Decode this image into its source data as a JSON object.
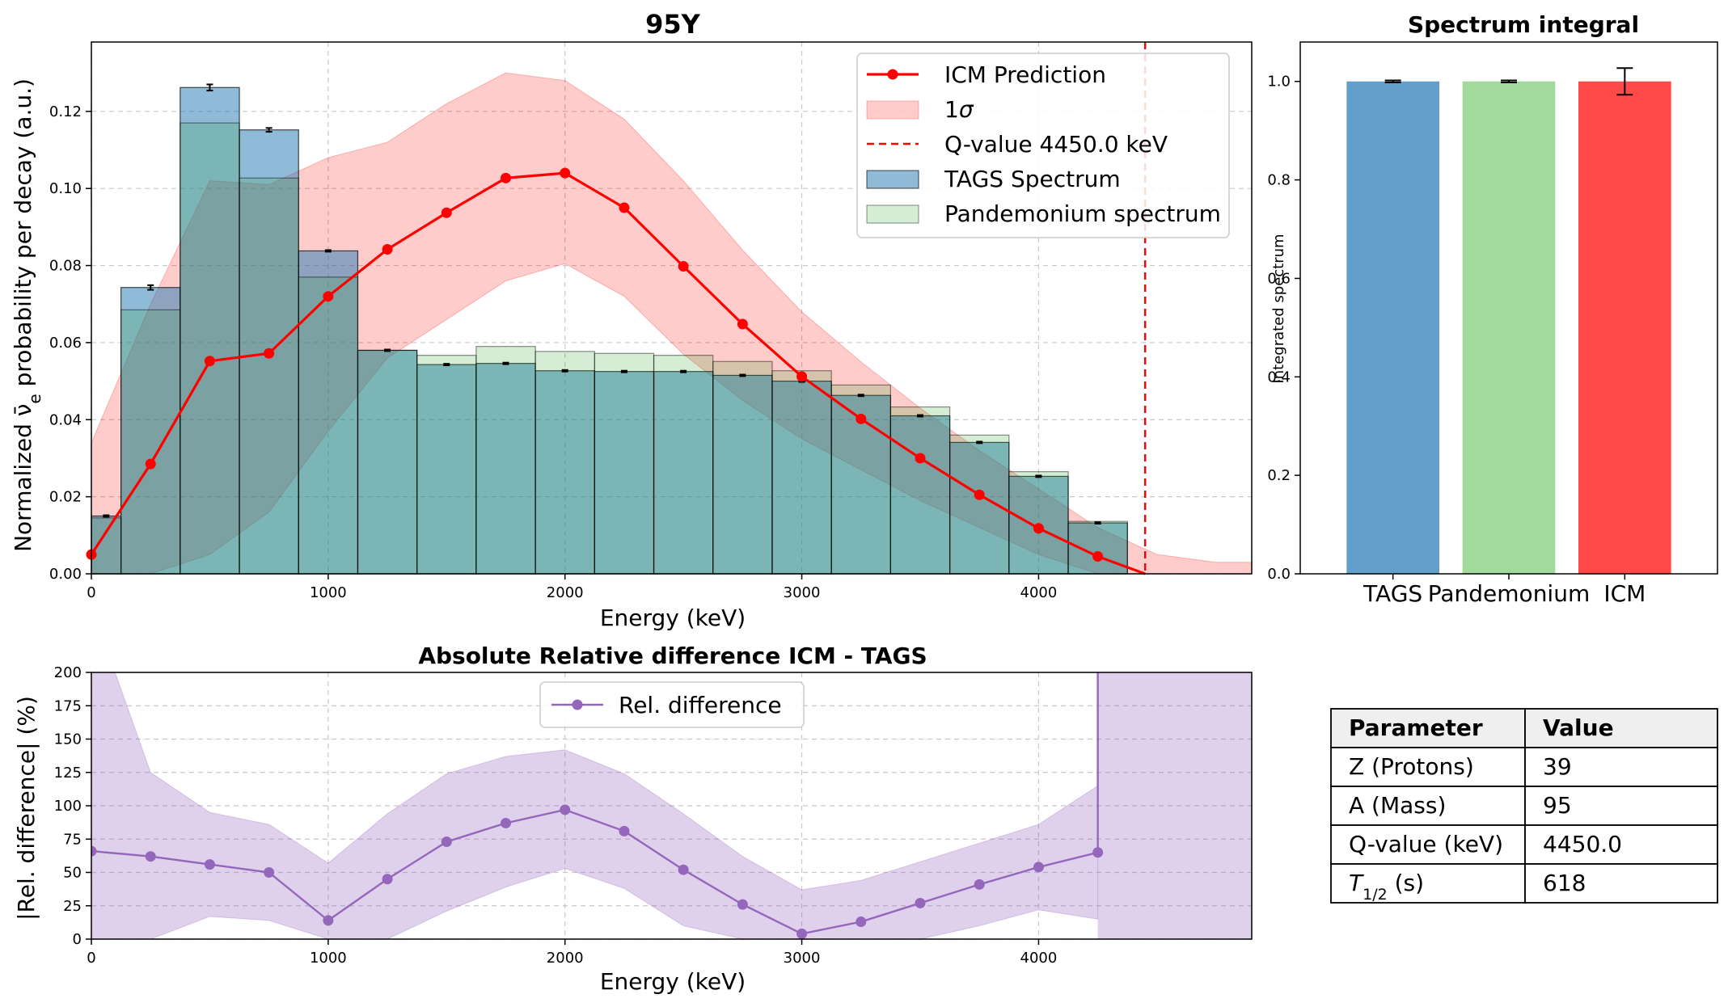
{
  "figure": {
    "main_title": "95Y",
    "panel_b_title": "Spectrum integral",
    "panel_c_title": "Absolute Relative difference ICM - TAGS"
  },
  "chart_data": [
    {
      "type": "bar",
      "title": "95Y",
      "xlabel": "Energy (keV)",
      "ylabel": "Normalized ν̄e probability per decay (a.u.)",
      "xlim": [
        0,
        4900
      ],
      "ylim": [
        0,
        0.138
      ],
      "x_ticks": [
        0,
        1000,
        2000,
        3000,
        4000
      ],
      "y_ticks": [
        0.0,
        0.02,
        0.04,
        0.06,
        0.08,
        0.1,
        0.12
      ],
      "grid": true,
      "legend_position": "top-right",
      "bin_edges": [
        0,
        125,
        375,
        625,
        875,
        1125,
        1375,
        1625,
        1875,
        2125,
        2375,
        2625,
        2875,
        3125,
        3375,
        3625,
        3875,
        4125,
        4375
      ],
      "series": [
        {
          "name": "TAGS Spectrum",
          "kind": "histogram",
          "color": "#1f77b4",
          "values": [
            0.015,
            0.0743,
            0.1262,
            0.1152,
            0.0838,
            0.058,
            0.0543,
            0.0546,
            0.0527,
            0.0525,
            0.0525,
            0.0515,
            0.05,
            0.0463,
            0.041,
            0.0341,
            0.0253,
            0.0132
          ],
          "errors": [
            0.0002,
            0.0006,
            0.0008,
            0.0005,
            0.0002,
            0.0002,
            0.0002,
            0.0002,
            0.0002,
            0.0002,
            0.0002,
            0.0002,
            0.0002,
            0.0002,
            0.0002,
            0.0002,
            0.0002,
            0.0002
          ]
        },
        {
          "name": "Pandemonium spectrum",
          "kind": "histogram",
          "color": "#2ca02c",
          "values": [
            0.0145,
            0.0685,
            0.117,
            0.1027,
            0.077,
            0.058,
            0.0567,
            0.059,
            0.0577,
            0.0572,
            0.0567,
            0.0551,
            0.0527,
            0.049,
            0.0433,
            0.036,
            0.0265,
            0.0136
          ]
        },
        {
          "name": "ICM Prediction",
          "kind": "line",
          "color": "#ff0000",
          "x": [
            0,
            250,
            500,
            750,
            1000,
            1250,
            1500,
            1750,
            2000,
            2250,
            2500,
            2750,
            3000,
            3250,
            3500,
            3750,
            4000,
            4250,
            4450
          ],
          "y": [
            0.005,
            0.0285,
            0.0552,
            0.0572,
            0.072,
            0.0842,
            0.0937,
            0.1027,
            0.104,
            0.095,
            0.0798,
            0.0648,
            0.0512,
            0.0402,
            0.03,
            0.0205,
            0.0118,
            0.0045,
            0.0
          ],
          "band_name": "1σ",
          "band_x": [
            0,
            250,
            500,
            750,
            1000,
            1250,
            1500,
            1750,
            2000,
            2250,
            2500,
            2750,
            3000,
            3250,
            3500,
            3750,
            4000,
            4250,
            4500,
            4750,
            4900
          ],
          "band_upper": [
            0.034,
            0.07,
            0.102,
            0.101,
            0.108,
            0.112,
            0.122,
            0.13,
            0.128,
            0.118,
            0.102,
            0.084,
            0.068,
            0.055,
            0.043,
            0.032,
            0.022,
            0.012,
            0.005,
            0.003,
            0.003
          ],
          "band_lower": [
            0.0,
            0.0,
            0.005,
            0.016,
            0.037,
            0.056,
            0.066,
            0.076,
            0.0805,
            0.072,
            0.057,
            0.045,
            0.035,
            0.027,
            0.019,
            0.012,
            0.005,
            0.0,
            0.0,
            0.0,
            0.0
          ]
        }
      ],
      "vline": {
        "x": 4450,
        "name": "Q-value 4450.0 keV",
        "color": "#ff0000"
      }
    },
    {
      "type": "bar",
      "title": "Spectrum integral",
      "xlabel": "",
      "ylabel": "Integrated spectrum",
      "ylim": [
        0,
        1.08
      ],
      "y_ticks": [
        0.0,
        0.2,
        0.4,
        0.6,
        0.8,
        1.0
      ],
      "categories": [
        "TAGS",
        "Pandemonium",
        "ICM"
      ],
      "values": [
        1.0,
        1.0,
        1.0
      ],
      "errors": [
        0.002,
        0.002,
        0.027
      ],
      "colors": [
        "#62a0cb",
        "#a2d99c",
        "#ff4a4a"
      ]
    },
    {
      "type": "line",
      "title": "Absolute Relative difference ICM - TAGS",
      "xlabel": "Energy (keV)",
      "ylabel": "|Rel. difference| (%)",
      "xlim": [
        0,
        4900
      ],
      "ylim": [
        0,
        200
      ],
      "x_ticks": [
        0,
        1000,
        2000,
        3000,
        4000
      ],
      "y_ticks": [
        0,
        25,
        50,
        75,
        100,
        125,
        150,
        175,
        200
      ],
      "grid": true,
      "legend_position": "top-center",
      "series": [
        {
          "name": "Rel. difference",
          "color": "#9467bd",
          "x": [
            0,
            250,
            500,
            750,
            1000,
            1250,
            1500,
            1750,
            2000,
            2250,
            2500,
            2750,
            3000,
            3250,
            3500,
            3750,
            4000,
            4250
          ],
          "y": [
            66,
            62,
            56,
            50,
            14,
            45,
            73,
            87,
            97,
            81,
            52,
            26,
            4,
            13,
            27,
            41,
            54,
            65
          ]
        }
      ],
      "band_x": [
        0,
        250,
        500,
        750,
        1000,
        1250,
        1500,
        1750,
        2000,
        2250,
        2500,
        2750,
        3000,
        3250,
        3500,
        3750,
        4000,
        4250
      ],
      "band_upper": [
        250,
        125,
        95,
        86,
        57,
        94,
        124,
        137,
        142,
        124,
        94,
        62,
        37,
        44,
        58,
        72,
        86,
        115
      ],
      "band_lower": [
        0,
        0,
        17,
        14,
        0,
        0,
        21,
        39,
        53,
        38,
        10,
        0,
        0,
        0,
        0,
        10,
        22,
        15
      ]
    }
  ],
  "table": {
    "headers": [
      "Parameter",
      "Value"
    ],
    "rows": [
      [
        "Z (Protons)",
        "39"
      ],
      [
        "A (Mass)",
        "95"
      ],
      [
        "Q-value (keV)",
        "4450.0"
      ],
      [
        "T1/2 (s)",
        "618"
      ]
    ]
  }
}
